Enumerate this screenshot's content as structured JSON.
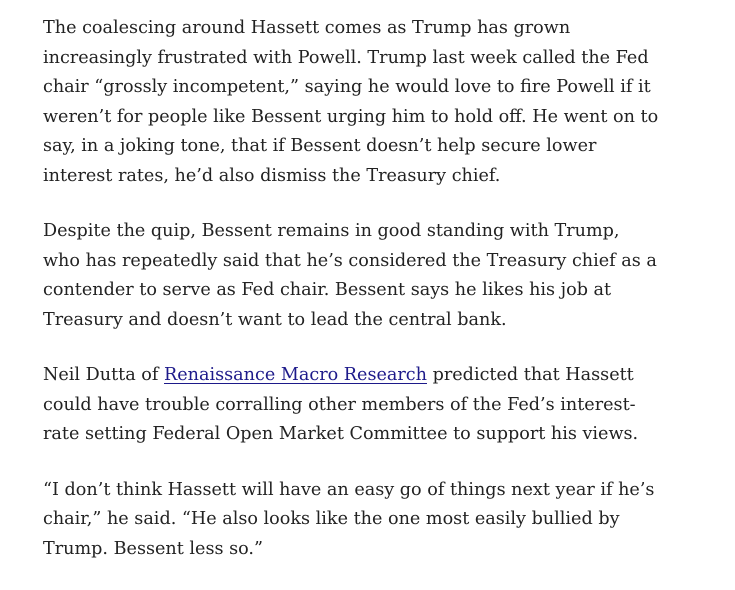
{
  "paragraphs": [
    {
      "lines": [
        "The coalescing around Hassett comes as Trump has grown",
        "increasingly frustrated with Powell. Trump last week called the Fed",
        "chair “grossly incompetent,” saying he would love to fire Powell if it",
        "weren’t for people like Bessent urging him to hold off. He went on to",
        "say, in a joking tone, that if Bessent doesn’t help secure lower",
        "interest rates, he’d also dismiss the Treasury chief."
      ]
    },
    {
      "lines": [
        "Despite the quip, Bessent remains in good standing with Trump,",
        "who has repeatedly said that he’s considered the Treasury chief as a",
        "contender to serve as Fed chair. Bessent says he likes his job at",
        "Treasury and doesn’t want to lead the central bank."
      ]
    },
    {
      "first_line": {
        "before": "Neil Dutta of ",
        "link": "Renaissance Macro Research",
        "after": " predicted that Hassett"
      },
      "lines": [
        "could have trouble corralling other members of the Fed’s interest-",
        "rate setting Federal Open Market Committee to support his views."
      ]
    },
    {
      "lines": [
        "“I don’t think Hassett will have an easy go of things next year if he’s",
        "chair,” he said. “He also looks like the one most easily bullied by",
        "Trump. Bessent less so.”"
      ]
    }
  ],
  "colors": {
    "text": "#222222",
    "link": "#1d1a8a"
  }
}
